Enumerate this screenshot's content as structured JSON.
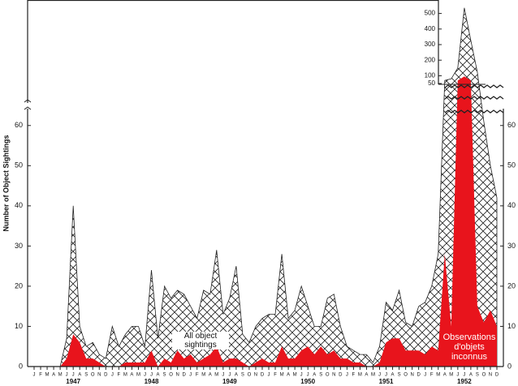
{
  "chart_data": {
    "type": "area",
    "y_label": "Number of Object Sightings",
    "categories": [
      "J",
      "F",
      "M",
      "A",
      "M",
      "J",
      "J",
      "A",
      "S",
      "O",
      "N",
      "D",
      "J",
      "F",
      "M",
      "A",
      "M",
      "J",
      "J",
      "A",
      "S",
      "O",
      "N",
      "D",
      "J",
      "F",
      "M",
      "A",
      "M",
      "J",
      "J",
      "A",
      "S",
      "O",
      "N",
      "D",
      "J",
      "F",
      "M",
      "A",
      "M",
      "J",
      "J",
      "A",
      "S",
      "O",
      "N",
      "D",
      "J",
      "F",
      "M",
      "A",
      "M",
      "J",
      "J",
      "A",
      "S",
      "O",
      "N",
      "D",
      "J",
      "F",
      "M",
      "A",
      "M",
      "J",
      "J",
      "A",
      "S",
      "O",
      "N",
      "D"
    ],
    "years": [
      "1947",
      "1948",
      "1949",
      "1950",
      "1951",
      "1952"
    ],
    "series": [
      {
        "name": "All object sightings",
        "color": "#222222",
        "values": [
          0,
          0,
          0,
          0,
          0,
          7,
          40,
          10,
          5,
          6,
          3,
          2,
          10,
          5,
          8,
          10,
          10,
          5,
          24,
          7,
          20,
          17,
          19,
          18,
          15,
          12,
          19,
          18,
          29,
          13,
          17,
          25,
          8,
          6,
          10,
          12,
          13,
          13,
          28,
          12,
          14,
          20,
          15,
          10,
          10,
          17,
          18,
          10,
          5,
          4,
          3,
          3,
          1,
          5,
          16,
          14,
          19,
          11,
          10,
          15,
          16,
          20,
          28,
          70,
          80,
          150,
          536,
          326,
          124,
          61,
          50,
          42
        ]
      },
      {
        "name": "Observations d'objets inconnus",
        "color": "#e8141c",
        "values": [
          0,
          0,
          0,
          0,
          0,
          2,
          8,
          6,
          2,
          2,
          1,
          0,
          0,
          0,
          1,
          1,
          1,
          1,
          4,
          0,
          2,
          1,
          4,
          2,
          3,
          1,
          2,
          3,
          5,
          1,
          2,
          2,
          1,
          0,
          1,
          2,
          1,
          1,
          5,
          2,
          2,
          4,
          5,
          3,
          5,
          3,
          4,
          2,
          2,
          1,
          1,
          0,
          0,
          1,
          6,
          7,
          7,
          4,
          4,
          4,
          3,
          5,
          4,
          28,
          10,
          70,
          96,
          70,
          15,
          11,
          14,
          10
        ]
      }
    ],
    "ylim": [
      0,
      65
    ],
    "yticks": [
      0,
      10,
      20,
      30,
      40,
      50,
      60
    ],
    "y2lim": [
      50,
      550
    ],
    "y2ticks": [
      50,
      100,
      200,
      300,
      400,
      500
    ]
  }
}
